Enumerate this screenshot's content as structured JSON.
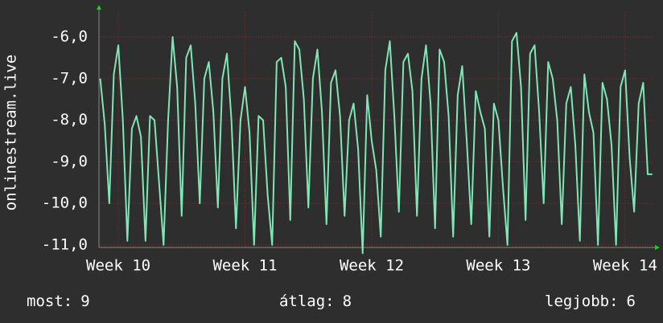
{
  "chart_data": {
    "type": "line",
    "y_label": "onlinestream.live",
    "x": [
      -1,
      -0.75,
      -0.5,
      -0.25,
      0,
      0.25,
      0.5,
      0.75,
      1,
      1.25,
      1.5,
      1.75,
      2,
      2.25,
      2.5,
      2.75,
      3,
      3.25,
      3.5,
      3.75,
      4,
      4.25,
      4.5,
      4.75,
      5,
      5.25,
      5.5,
      5.75,
      6,
      6.25,
      6.5,
      6.75,
      7,
      7.25,
      7.5,
      7.75,
      8,
      8.25,
      8.5,
      8.75,
      9,
      9.25,
      9.5,
      9.75,
      10,
      10.25,
      10.5,
      10.75,
      11,
      11.25,
      11.5,
      11.75,
      12,
      12.25,
      12.5,
      12.75,
      13,
      13.25,
      13.5,
      13.75,
      14,
      14.25,
      14.5,
      14.75,
      15,
      15.25,
      15.5,
      15.75,
      16,
      16.25,
      16.5,
      16.75,
      17,
      17.25,
      17.5,
      17.75,
      18,
      18.25,
      18.5,
      18.75,
      19,
      19.25,
      19.5,
      19.75,
      20,
      20.25,
      20.5,
      20.75,
      21,
      21.25,
      21.5,
      21.75,
      22,
      22.25,
      22.5,
      22.75,
      23,
      23.25,
      23.5,
      23.75,
      24,
      24.25,
      24.5,
      24.75,
      25,
      25.25,
      25.5,
      25.75,
      26,
      26.25,
      26.5,
      26.75,
      27,
      27.25,
      27.5,
      27.75,
      28,
      28.25,
      28.5,
      28.75,
      29,
      29.25,
      29.5
    ],
    "series": [
      {
        "color": "#7fe6b4",
        "values": [
          -7.0,
          -8.1,
          -10.0,
          -6.9,
          -6.2,
          -8.0,
          -10.9,
          -8.2,
          -7.9,
          -8.4,
          -10.9,
          -7.9,
          -8.0,
          -9.5,
          -11.0,
          -8.0,
          -6.0,
          -7.2,
          -10.3,
          -6.5,
          -6.2,
          -7.6,
          -10.0,
          -7.0,
          -6.6,
          -7.8,
          -10.1,
          -7.0,
          -6.4,
          -8.0,
          -10.6,
          -8.0,
          -7.2,
          -8.3,
          -11.0,
          -7.9,
          -8.0,
          -9.8,
          -11.0,
          -6.6,
          -6.5,
          -7.2,
          -10.4,
          -6.1,
          -6.3,
          -7.5,
          -10.1,
          -7.0,
          -6.3,
          -7.8,
          -10.5,
          -7.1,
          -6.8,
          -7.9,
          -10.3,
          -8.0,
          -7.6,
          -8.7,
          -11.2,
          -7.4,
          -8.5,
          -9.2,
          -10.8,
          -6.8,
          -6.1,
          -7.9,
          -10.2,
          -6.6,
          -6.4,
          -7.3,
          -10.3,
          -7.0,
          -6.2,
          -7.6,
          -10.6,
          -6.3,
          -6.6,
          -7.9,
          -10.8,
          -7.4,
          -6.7,
          -8.5,
          -10.5,
          -7.3,
          -7.8,
          -8.2,
          -10.8,
          -7.6,
          -8.0,
          -9.6,
          -11.0,
          -6.1,
          -5.9,
          -7.2,
          -10.4,
          -6.4,
          -6.2,
          -7.8,
          -10.0,
          -6.6,
          -7.0,
          -8.0,
          -10.5,
          -7.6,
          -7.2,
          -8.6,
          -10.9,
          -6.9,
          -7.8,
          -8.3,
          -11.0,
          -7.1,
          -7.5,
          -8.6,
          -11.0,
          -7.2,
          -6.8,
          -8.9,
          -10.2,
          -7.6,
          -7.1,
          -9.3,
          -9.3
        ]
      }
    ],
    "xlim": [
      -1.07,
      29.56
    ],
    "xticks": [
      {
        "value": 0,
        "label": "Week 10"
      },
      {
        "value": 7,
        "label": "Week 11"
      },
      {
        "value": 14,
        "label": "Week 12"
      },
      {
        "value": 21,
        "label": "Week 13"
      },
      {
        "value": 28,
        "label": "Week 14"
      }
    ],
    "ylim": [
      -11.06,
      -5.4
    ],
    "yticks": [
      {
        "value": -6,
        "label": "-6,0"
      },
      {
        "value": -7,
        "label": "-7,0"
      },
      {
        "value": -8,
        "label": "-8,0"
      },
      {
        "value": -9,
        "label": "-9,0"
      },
      {
        "value": -10,
        "label": "-10,0"
      },
      {
        "value": -11,
        "label": "-11,0"
      }
    ],
    "grid": true,
    "stats": [
      {
        "label": "most:",
        "value": 9
      },
      {
        "label": "átlag:",
        "value": 8
      },
      {
        "label": "legjobb:",
        "value": 6
      }
    ]
  }
}
